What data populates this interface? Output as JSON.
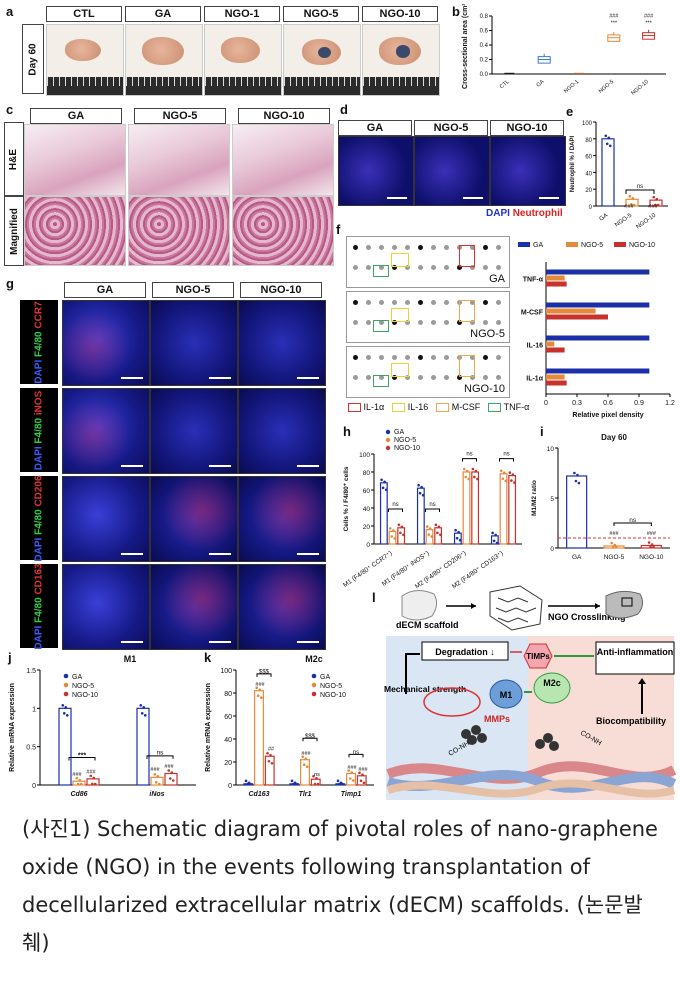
{
  "panels": {
    "a": {
      "label": "a",
      "row_label": "Day 60",
      "columns": [
        "CTL",
        "GA",
        "NGO-1",
        "NGO-5",
        "NGO-10"
      ]
    },
    "b": {
      "label": "b",
      "ylabel": "Cross-sectional area (cm²)"
    },
    "c": {
      "label": "c",
      "columns": [
        "GA",
        "NGO-5",
        "NGO-10"
      ],
      "rows": [
        "H&E",
        "Magnified"
      ]
    },
    "d": {
      "label": "d",
      "columns": [
        "GA",
        "NGO-5",
        "NGO-10"
      ],
      "legend_dapi": "DAPI",
      "legend_neutrophil": "Neutrophil"
    },
    "e": {
      "label": "e",
      "ylabel": "Neutrophil % / DAPI",
      "ns": "ns"
    },
    "f": {
      "label": "f",
      "array_labels": [
        "GA",
        "NGO-5",
        "NGO-10"
      ],
      "legend": [
        "IL-1α",
        "IL-16",
        "M-CSF",
        "TNF-α"
      ],
      "chart_legend": [
        "GA",
        "NGO-5",
        "NGO-10"
      ]
    },
    "g": {
      "label": "g",
      "columns": [
        "GA",
        "NGO-5",
        "NGO-10"
      ],
      "rows": [
        {
          "dapi": "DAPI",
          "marker1": "F4/80",
          "marker2": "CCR7"
        },
        {
          "dapi": "DAPI",
          "marker1": "F4/80",
          "marker2": "iNOS"
        },
        {
          "dapi": "DAPI",
          "marker1": "F4/80",
          "marker2": "CD206"
        },
        {
          "dapi": "DAPI",
          "marker1": "F4/80",
          "marker2": "CD163"
        }
      ]
    },
    "h": {
      "label": "h",
      "ylabel": "Cells % / F4/80⁺ cells",
      "legend": [
        "GA",
        "NGO-5",
        "NGO-10"
      ]
    },
    "i": {
      "label": "i",
      "title": "Day 60",
      "ylabel": "M1/M2 ratio",
      "ns": "ns"
    },
    "j": {
      "label": "j",
      "title": "M1",
      "ylabel": "Relative mRNA expression",
      "legend": [
        "GA",
        "NGO-5",
        "NGO-10"
      ]
    },
    "k": {
      "label": "k",
      "title": "M2c",
      "ylabel": "Relative mRNA expression",
      "legend": [
        "GA",
        "NGO-5",
        "NGO-10"
      ]
    },
    "l": {
      "label": "l",
      "scaffold": "dECM scaffold",
      "step": "NGO Crosslinking",
      "degradation": "Degradation ↓",
      "timps": "TIMPs",
      "anti": "Anti-inflammation",
      "mech": "Mechanical strength",
      "m1": "M1",
      "m2c": "M2c",
      "mmps": "MMPs",
      "bio": "Biocompatibility",
      "bond1": "CO-NH",
      "bond2": "CO-NH"
    }
  },
  "caption": "(사진1) Schematic diagram of pivotal roles of nano-graphene oxide (NGO) in the events following transplantation of decellularized extracellular matrix (dECM) scaffolds. (논문발췌)",
  "chart_data": [
    {
      "id": "b",
      "type": "box",
      "ylabel": "Cross-sectional area (cm²)",
      "categories": [
        "CTL",
        "GA",
        "NGO-1",
        "NGO-5",
        "NGO-10"
      ],
      "values": [
        0,
        0.2,
        0,
        0.5,
        0.53
      ],
      "ylim": [
        0,
        0.8
      ],
      "yticks": [
        0.0,
        0.2,
        0.4,
        0.6,
        0.8
      ],
      "annotations": [
        "###",
        "###",
        "***",
        "***"
      ]
    },
    {
      "id": "e",
      "type": "bar",
      "ylabel": "Neutrophil % / DAPI",
      "categories": [
        "GA",
        "NGO-5",
        "NGO-10"
      ],
      "values": [
        80,
        8,
        7
      ],
      "ylim": [
        0,
        100
      ],
      "yticks": [
        0,
        20,
        40,
        60,
        80,
        100
      ],
      "annotations": [
        "###",
        "###",
        "ns"
      ]
    },
    {
      "id": "f",
      "type": "bar",
      "orientation": "horizontal",
      "xlabel": "Relative pixel density",
      "categories": [
        "TNF-α",
        "M-CSF",
        "IL-16",
        "IL-1α"
      ],
      "xlim": [
        0,
        1.2
      ],
      "xticks": [
        0.0,
        0.3,
        0.6,
        0.9,
        1.2
      ],
      "series": [
        {
          "name": "GA",
          "color": "#1a2fa8",
          "values": [
            1.0,
            1.0,
            1.0,
            1.0
          ]
        },
        {
          "name": "NGO-5",
          "color": "#e58a3a",
          "values": [
            0.18,
            0.48,
            0.08,
            0.18
          ]
        },
        {
          "name": "NGO-10",
          "color": "#c8322c",
          "values": [
            0.2,
            0.6,
            0.18,
            0.2
          ]
        }
      ]
    },
    {
      "id": "h",
      "type": "bar",
      "ylabel": "Cells % / F4/80⁺ cells",
      "categories": [
        "M1 (F4/80⁺ CCR7⁺)",
        "M1 (F4/80⁺ iNOS⁺)",
        "M2 (F4/80⁺ CD206⁺)",
        "M2 (F4/80⁺ CD163⁺)"
      ],
      "ylim": [
        0,
        100
      ],
      "yticks": [
        0,
        20,
        40,
        60,
        80,
        100
      ],
      "series": [
        {
          "name": "GA",
          "color": "#1a2fa8",
          "values": [
            68,
            62,
            12,
            9
          ]
        },
        {
          "name": "NGO-5",
          "color": "#e58a3a",
          "values": [
            14,
            16,
            80,
            78
          ]
        },
        {
          "name": "NGO-10",
          "color": "#c8322c",
          "values": [
            18,
            18,
            80,
            76
          ]
        }
      ],
      "annotations": [
        "ns",
        "ns",
        "ns",
        "ns",
        "###"
      ]
    },
    {
      "id": "i",
      "type": "bar",
      "title": "Day 60",
      "ylabel": "M1/M2 ratio",
      "categories": [
        "GA",
        "NGO-5",
        "NGO-10"
      ],
      "values": [
        7.2,
        0.2,
        0.25
      ],
      "ylim": [
        0,
        10
      ],
      "yticks": [
        0,
        5,
        10
      ],
      "annotations": [
        "###",
        "###",
        "ns"
      ]
    },
    {
      "id": "j",
      "type": "bar",
      "title": "M1",
      "ylabel": "Relative mRNA expression",
      "categories": [
        "Cd86",
        "iNos"
      ],
      "ylim": [
        0,
        1.5
      ],
      "yticks": [
        0.0,
        0.5,
        1.0,
        1.5
      ],
      "series": [
        {
          "name": "GA",
          "color": "#1a2fa8",
          "values": [
            1.0,
            1.0
          ]
        },
        {
          "name": "NGO-5",
          "color": "#e58a3a",
          "values": [
            0.05,
            0.1
          ]
        },
        {
          "name": "NGO-10",
          "color": "#c8322c",
          "values": [
            0.08,
            0.15
          ]
        }
      ],
      "annotations": [
        "***",
        "###",
        "###",
        "ns",
        "###",
        "###"
      ]
    },
    {
      "id": "k",
      "type": "bar",
      "title": "M2c",
      "ylabel": "Relative mRNA expression",
      "categories": [
        "Cd163",
        "Tlr1",
        "Timp1"
      ],
      "ylim": [
        0,
        100
      ],
      "yticks": [
        0,
        20,
        40,
        60,
        80,
        100
      ],
      "series": [
        {
          "name": "GA",
          "color": "#1a2fa8",
          "values": [
            1,
            1,
            1
          ]
        },
        {
          "name": "NGO-5",
          "color": "#e58a3a",
          "values": [
            82,
            22,
            10
          ]
        },
        {
          "name": "NGO-10",
          "color": "#c8322c",
          "values": [
            25,
            5,
            8
          ]
        }
      ],
      "annotations": [
        "$$$",
        "###",
        "##",
        "$$$",
        "###",
        "ns",
        "ns",
        "###",
        "###"
      ]
    }
  ]
}
